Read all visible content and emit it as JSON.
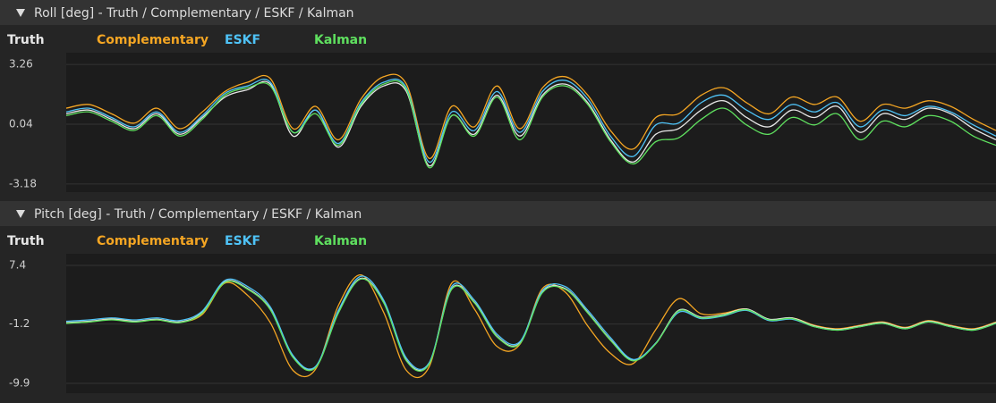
{
  "chart_data": [
    {
      "type": "line",
      "title": "Roll [deg] - Truth / Complementary / ESKF / Kalman",
      "ylim": [
        -3.62,
        3.89
      ],
      "yticks": [
        -3.18,
        0.04,
        3.26
      ],
      "grid": true,
      "series": [
        {
          "name": "Truth",
          "color": "#e6e6e6",
          "values": [
            0.6,
            0.8,
            0.3,
            -0.2,
            0.6,
            -0.5,
            0.4,
            1.5,
            1.9,
            2.2,
            -0.6,
            0.8,
            -1.2,
            1.0,
            2.1,
            1.8,
            -2.2,
            0.5,
            -0.5,
            1.6,
            -0.6,
            1.6,
            2.2,
            1.2,
            -0.8,
            -2.0,
            -0.5,
            -0.2,
            0.8,
            1.3,
            0.4,
            -0.1,
            0.8,
            0.4,
            1.0,
            -0.4,
            0.6,
            0.3,
            0.9,
            0.6,
            -0.2,
            -0.8
          ]
        },
        {
          "name": "Complementary",
          "color": "#f5a623",
          "values": [
            0.9,
            1.1,
            0.6,
            0.1,
            0.9,
            -0.2,
            0.7,
            1.8,
            2.3,
            2.5,
            -0.2,
            1.0,
            -0.8,
            1.4,
            2.6,
            2.2,
            -1.8,
            1.0,
            -0.1,
            2.1,
            -0.2,
            2.0,
            2.6,
            1.6,
            -0.3,
            -1.3,
            0.4,
            0.6,
            1.6,
            2.0,
            1.2,
            0.6,
            1.5,
            1.1,
            1.5,
            0.2,
            1.1,
            0.9,
            1.3,
            1.0,
            0.3,
            -0.3
          ]
        },
        {
          "name": "ESKF",
          "color": "#4fc3f7",
          "values": [
            0.7,
            0.9,
            0.4,
            -0.1,
            0.7,
            -0.4,
            0.5,
            1.7,
            2.1,
            2.3,
            -0.4,
            0.8,
            -1.0,
            1.2,
            2.3,
            2.0,
            -2.0,
            0.7,
            -0.3,
            1.8,
            -0.4,
            1.8,
            2.4,
            1.4,
            -0.6,
            -1.7,
            0.0,
            0.1,
            1.2,
            1.6,
            0.8,
            0.3,
            1.1,
            0.7,
            1.2,
            -0.1,
            0.8,
            0.5,
            1.0,
            0.7,
            0.0,
            -0.6
          ]
        },
        {
          "name": "Kalman",
          "color": "#5fe05f",
          "values": [
            0.5,
            0.7,
            0.2,
            -0.3,
            0.5,
            -0.6,
            0.3,
            1.6,
            2.0,
            2.1,
            -0.4,
            0.6,
            -1.1,
            1.1,
            2.2,
            1.9,
            -2.3,
            0.5,
            -0.6,
            1.5,
            -0.8,
            1.5,
            2.1,
            1.1,
            -0.9,
            -2.1,
            -0.9,
            -0.7,
            0.3,
            0.9,
            0.0,
            -0.5,
            0.4,
            0.0,
            0.6,
            -0.8,
            0.2,
            -0.1,
            0.5,
            0.2,
            -0.6,
            -1.1
          ]
        }
      ]
    },
    {
      "type": "line",
      "title": "Pitch [deg] - Truth / Complementary / ESKF / Kalman",
      "ylim": [
        -11.34,
        9.1
      ],
      "yticks": [
        -9.9,
        -1.2,
        7.4
      ],
      "grid": true,
      "series": [
        {
          "name": "Truth",
          "color": "#e6e6e6",
          "values": [
            -1.0,
            -0.8,
            -0.5,
            -0.8,
            -0.5,
            -0.9,
            0.5,
            5.0,
            4.0,
            1.0,
            -6.0,
            -7.5,
            0.5,
            5.5,
            2.0,
            -6.5,
            -7.0,
            4.0,
            2.0,
            -3.0,
            -4.0,
            3.5,
            4.0,
            0.5,
            -3.5,
            -6.5,
            -4.0,
            0.8,
            -0.2,
            0.2,
            1.0,
            -0.5,
            -0.3,
            -1.5,
            -2.0,
            -1.5,
            -1.0,
            -1.8,
            -0.8,
            -1.5,
            -2.0,
            -1.0
          ]
        },
        {
          "name": "Complementary",
          "color": "#f5a623",
          "values": [
            -1.0,
            -0.9,
            -0.4,
            -0.8,
            -0.6,
            -0.9,
            0.2,
            4.8,
            3.0,
            -1.0,
            -8.0,
            -7.8,
            1.5,
            6.0,
            0.5,
            -8.0,
            -7.5,
            4.8,
            1.0,
            -4.5,
            -4.2,
            4.0,
            3.5,
            -1.5,
            -5.5,
            -7.0,
            -2.0,
            2.5,
            0.3,
            0.4,
            1.0,
            -0.6,
            -0.3,
            -1.4,
            -1.9,
            -1.4,
            -0.9,
            -1.7,
            -0.7,
            -1.4,
            -1.9,
            -0.9
          ]
        },
        {
          "name": "ESKF",
          "color": "#4fc3f7",
          "values": [
            -0.8,
            -0.6,
            -0.3,
            -0.6,
            -0.3,
            -0.7,
            0.7,
            5.2,
            4.3,
            1.3,
            -5.8,
            -7.4,
            0.8,
            5.8,
            2.3,
            -6.2,
            -6.9,
            4.3,
            2.3,
            -2.7,
            -3.8,
            3.7,
            4.3,
            0.8,
            -3.2,
            -6.4,
            -4.0,
            0.5,
            -0.4,
            0.0,
            0.8,
            -0.7,
            -0.5,
            -1.6,
            -2.1,
            -1.6,
            -1.1,
            -1.9,
            -0.9,
            -1.6,
            -2.1,
            -1.1
          ]
        },
        {
          "name": "Kalman",
          "color": "#5fe05f",
          "values": [
            -1.1,
            -0.9,
            -0.6,
            -0.9,
            -0.6,
            -1.0,
            0.4,
            4.9,
            3.9,
            0.9,
            -6.1,
            -7.6,
            0.4,
            5.4,
            1.9,
            -6.6,
            -7.1,
            3.9,
            1.9,
            -3.1,
            -4.1,
            3.4,
            3.9,
            0.4,
            -3.6,
            -6.6,
            -4.1,
            0.7,
            -0.3,
            0.1,
            0.9,
            -0.6,
            -0.4,
            -1.6,
            -2.1,
            -1.6,
            -1.1,
            -1.9,
            -0.9,
            -1.6,
            -2.1,
            -1.1
          ]
        }
      ]
    }
  ]
}
